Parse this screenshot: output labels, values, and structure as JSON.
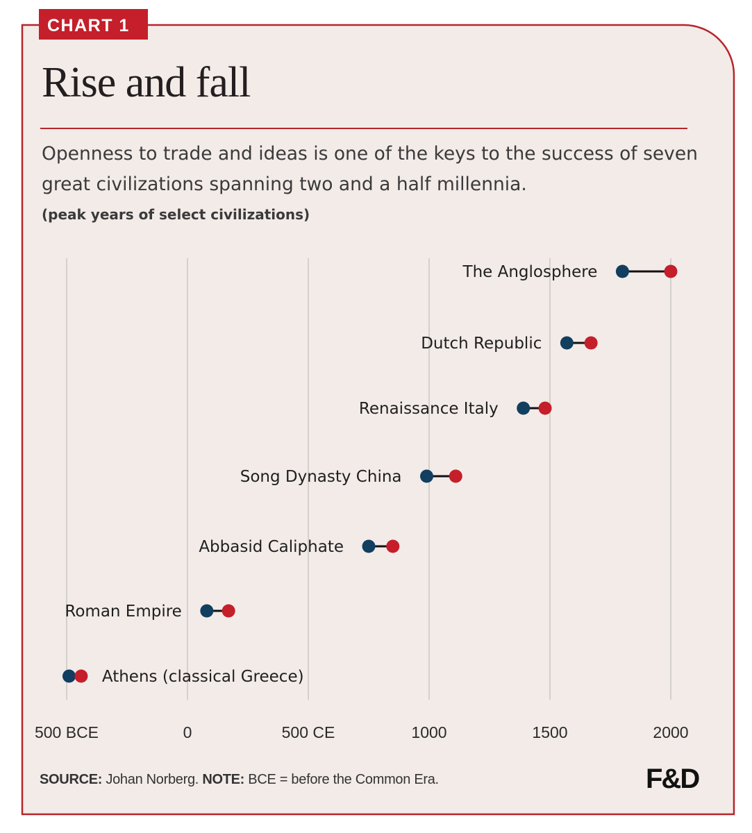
{
  "badge": "CHART 1",
  "title": "Rise and fall",
  "subtitle": "Openness to trade and ideas is one of the keys to the success of seven great civilizations spanning two and a half millennia.",
  "unit_note": "(peak years of select civilizations)",
  "footer": {
    "source_label": "SOURCE:",
    "source_text": " Johan Norberg. ",
    "note_label": "NOTE:",
    "note_text": " BCE = before the Common Era."
  },
  "logo": "F&D",
  "colors": {
    "panel_bg": "#f3ebe8",
    "border": "#b5252b",
    "badge_bg": "#c41f2a",
    "start_dot": "#123e5f",
    "end_dot": "#c41f2a",
    "connector": "#111111",
    "gridline": "#d4d0cc"
  },
  "chart_data": {
    "type": "dumbbell",
    "x_ticks": [
      {
        "value": -500,
        "label": "500 BCE"
      },
      {
        "value": 0,
        "label": "0"
      },
      {
        "value": 500,
        "label": "500 CE"
      },
      {
        "value": 1000,
        "label": "1000"
      },
      {
        "value": 1500,
        "label": "1500"
      },
      {
        "value": 2000,
        "label": "2000"
      }
    ],
    "xlim": [
      -500,
      2000
    ],
    "grid": true,
    "rows": [
      {
        "label": "The Anglosphere",
        "start": 1800,
        "end": 2000
      },
      {
        "label": "Dutch Republic",
        "start": 1570,
        "end": 1670
      },
      {
        "label": "Renaissance Italy",
        "start": 1390,
        "end": 1480
      },
      {
        "label": "Song Dynasty China",
        "start": 990,
        "end": 1110
      },
      {
        "label": "Abbasid Caliphate",
        "start": 750,
        "end": 850
      },
      {
        "label": "Roman Empire",
        "start": 80,
        "end": 170
      },
      {
        "label": "Athens (classical Greece)",
        "start": -490,
        "end": -440
      }
    ]
  }
}
